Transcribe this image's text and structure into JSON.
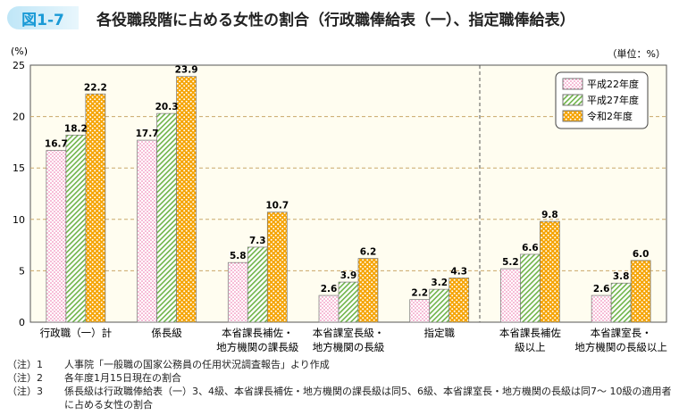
{
  "header": {
    "figure_label": "図1-7",
    "title": "各役職段階に占める女性の割合（行政職俸給表（一）、指定職俸給表）"
  },
  "chart_data": {
    "type": "bar",
    "title": "各役職段階に占める女性の割合（行政職俸給表（一）、指定職俸給表）",
    "ylabel": "(%)",
    "unit_note": "（単位：%）",
    "ylim": [
      0,
      25
    ],
    "yticks": [
      0,
      5,
      10,
      15,
      20,
      25
    ],
    "grid": true,
    "legend_position": "top-right",
    "categories": [
      [
        "行政職（一）計"
      ],
      [
        "係長級"
      ],
      [
        "本省課長補佐・",
        "地方機関の課長級"
      ],
      [
        "本省課室長級・",
        "地方機関の長級"
      ],
      [
        "指定職"
      ],
      [
        "本省課長補佐",
        "級以上"
      ],
      [
        "本省課室長・",
        "地方機関の長級以上"
      ]
    ],
    "series": [
      {
        "name": "平成22年度",
        "values": [
          16.7,
          17.7,
          5.8,
          2.6,
          2.2,
          5.2,
          2.6
        ],
        "labels": [
          "16.7",
          "17.7",
          "5.8",
          "2.6",
          "2.2",
          "5.2",
          "2.6"
        ],
        "color": "#f4a6c8"
      },
      {
        "name": "平成27年度",
        "values": [
          18.2,
          20.3,
          7.3,
          3.9,
          3.2,
          6.6,
          3.8
        ],
        "labels": [
          "18.2",
          "20.3",
          "7.3",
          "3.9",
          "3.2",
          "6.6",
          "3.8"
        ],
        "color": "#7cbf5a"
      },
      {
        "name": "令和2年度",
        "values": [
          22.2,
          23.9,
          10.7,
          6.2,
          4.3,
          9.8,
          6.0
        ],
        "labels": [
          "22.2",
          "23.9",
          "10.7",
          "6.2",
          "4.3",
          "9.8",
          "6.0"
        ],
        "color": "#f5a300"
      }
    ]
  },
  "notes": [
    {
      "prefix": "（注）1",
      "text": "人事院「一般職の国家公務員の任用状況調査報告」より作成"
    },
    {
      "prefix": "（注）2",
      "text": "各年度1月15日現在の割合"
    },
    {
      "prefix": "（注）3",
      "text": "係長級は行政職俸給表（一）3、4級、本省課長補佐・地方機関の課長級は同5、6級、本省課室長・地方機関の長級は同7～ 10級の適用者に占める女性の割合"
    }
  ]
}
